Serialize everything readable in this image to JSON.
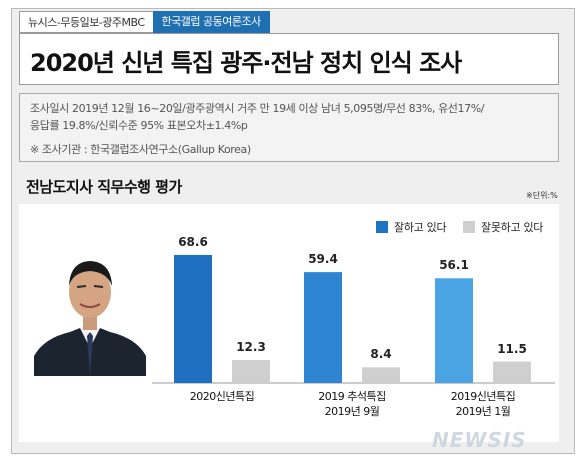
{
  "header": {
    "source_tag": "뉴시스-무등일보-광주MBC",
    "publisher_tag": "한국갤럽 공동여론조사",
    "title": "2020년 신년 특집 광주·전남 정치 인식 조사"
  },
  "survey_info": {
    "line1": "조사일시 2019년 12월 16~20일/광주광역시 거주 만 19세 이상 남녀 5,095명/무선 83%, 유선17%/",
    "line2": "응답률 19.8%/신뢰수준 95% 표본오차±1.4%p",
    "line3": "※ 조사기관 : 한국갤럽조사연구소(Gallup Korea)"
  },
  "unit_note": "※단위:%",
  "watermark": "NEWSIS",
  "colors": {
    "accent": "#1f6fb3",
    "bar_positive": "#1e74c2",
    "bar_negative": "#cfcfcf"
  },
  "chart_data": {
    "type": "bar",
    "title": "전남도지사 직무수행 평가",
    "categories": [
      "2020신년특집",
      "2019 추석특집\n2019년 9월",
      "2019신년특집\n2019년 1월"
    ],
    "category_lines": [
      [
        "2020신년특집"
      ],
      [
        "2019 추석특집",
        "2019년 9월"
      ],
      [
        "2019신년특집",
        "2019년 1월"
      ]
    ],
    "series": [
      {
        "name": "잘하고 있다",
        "values": [
          68.6,
          59.4,
          56.1
        ],
        "colors": [
          "#1e6fbf",
          "#2e86d3",
          "#4aa4e3"
        ]
      },
      {
        "name": "잘못하고 있다",
        "values": [
          12.3,
          8.4,
          11.5
        ],
        "colors": [
          "#cfcfcf",
          "#cfcfcf",
          "#cfcfcf"
        ]
      }
    ],
    "value_labels": [
      [
        "68.6",
        "59.4",
        "56.1"
      ],
      [
        "12.3",
        "8.4",
        "11.5"
      ]
    ],
    "ylim": [
      0,
      75
    ],
    "legend_position": "top-right"
  }
}
